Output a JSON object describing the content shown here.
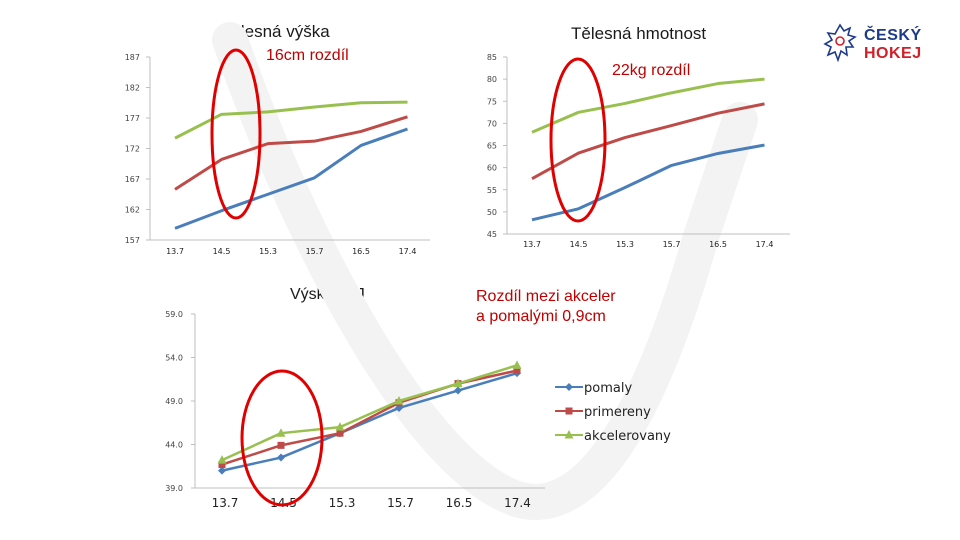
{
  "colors": {
    "pomaly": "#4a7ebb",
    "primereny": "#be4b48",
    "akcelerovany": "#98c04f",
    "annotation": "#e00000"
  },
  "logo": {
    "line1": "ČESKÝ",
    "line2": "HOKEJ"
  },
  "annotations": {
    "height_diff": "16cm rozdíl",
    "weight_diff": "22kg rozdíl",
    "sj_diff": "Rozdíl mezi akceler\na pomalými 0,9cm"
  },
  "chart_data": [
    {
      "id": "height",
      "type": "line",
      "title": "Tělesná výška",
      "categories": [
        "13.7",
        "14.5",
        "15.3",
        "15.7",
        "16.5",
        "17.4"
      ],
      "ylim": [
        157,
        187
      ],
      "yticks": [
        "187",
        "182",
        "177",
        "172",
        "167",
        "162",
        "157"
      ],
      "series": [
        {
          "name": "pomaly",
          "values": [
            158.9,
            161.8,
            164.5,
            167.2,
            172.5,
            175.2
          ]
        },
        {
          "name": "primereny",
          "values": [
            165.3,
            170.2,
            172.8,
            173.2,
            174.8,
            177.2
          ]
        },
        {
          "name": "akcelerovany",
          "values": [
            173.7,
            177.6,
            178.0,
            178.8,
            179.5,
            179.6
          ]
        }
      ]
    },
    {
      "id": "weight",
      "type": "line",
      "title": "Tělesná hmotnost",
      "categories": [
        "13.7",
        "14.5",
        "15.3",
        "15.7",
        "16.5",
        "17.4"
      ],
      "ylim": [
        45,
        85
      ],
      "yticks": [
        "85",
        "80",
        "75",
        "70",
        "65",
        "60",
        "55",
        "50",
        "45"
      ],
      "series": [
        {
          "name": "pomaly",
          "values": [
            48.2,
            50.7,
            55.5,
            60.5,
            63.2,
            65.1
          ]
        },
        {
          "name": "primereny",
          "values": [
            57.5,
            63.3,
            66.8,
            69.5,
            72.3,
            74.4
          ]
        },
        {
          "name": "akcelerovany",
          "values": [
            68.0,
            72.5,
            74.5,
            76.9,
            79.0,
            80.0
          ]
        }
      ]
    },
    {
      "id": "sj",
      "type": "line",
      "title": "Výskok SJ",
      "categories": [
        "13.7",
        "14.5",
        "15.3",
        "15.7",
        "16.5",
        "17.4"
      ],
      "ylim": [
        39,
        59
      ],
      "yticks": [
        "59.0",
        "54.0",
        "49.0",
        "44.0",
        "39.0"
      ],
      "legend": "right",
      "series": [
        {
          "name": "pomaly",
          "marker": "diamond",
          "values": [
            41.0,
            42.5,
            45.3,
            48.2,
            50.2,
            52.2
          ]
        },
        {
          "name": "primereny",
          "marker": "square",
          "values": [
            41.7,
            43.9,
            45.3,
            48.8,
            51.0,
            52.5
          ]
        },
        {
          "name": "akcelerovany",
          "marker": "triangle",
          "values": [
            42.2,
            45.3,
            46.0,
            49.0,
            51.0,
            53.1
          ]
        }
      ]
    }
  ]
}
